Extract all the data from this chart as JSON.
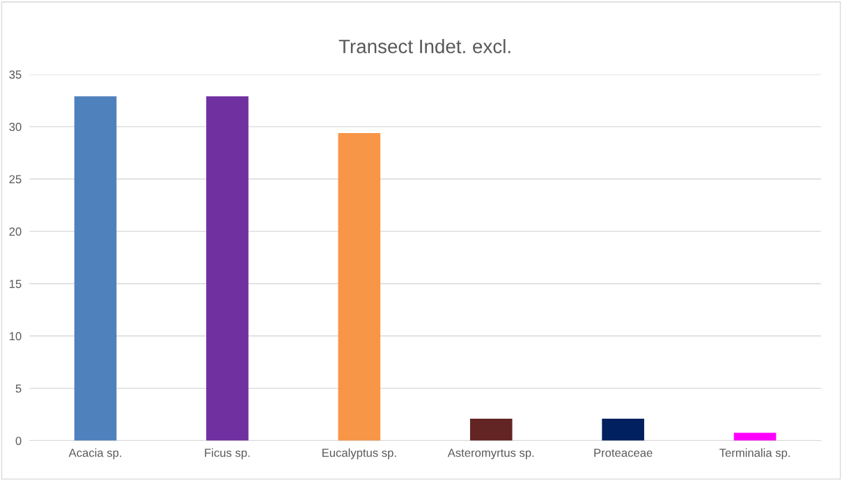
{
  "chart_data": {
    "type": "bar",
    "title": "Transect Indet. excl.",
    "categories": [
      "Acacia sp.",
      "Ficus sp.",
      "Eucalyptus sp.",
      "Asteromyrtus sp.",
      "Proteaceae",
      "Terminalia sp."
    ],
    "values": [
      32.9,
      32.9,
      29.4,
      2.1,
      2.1,
      0.75
    ],
    "colors": [
      "#4f81bd",
      "#7030a0",
      "#f79646",
      "#632523",
      "#002060",
      "#ff00ff"
    ],
    "ylim": [
      0,
      35
    ],
    "yticks": [
      0,
      5,
      10,
      15,
      20,
      25,
      30,
      35
    ],
    "grid": "y",
    "legend": false
  }
}
